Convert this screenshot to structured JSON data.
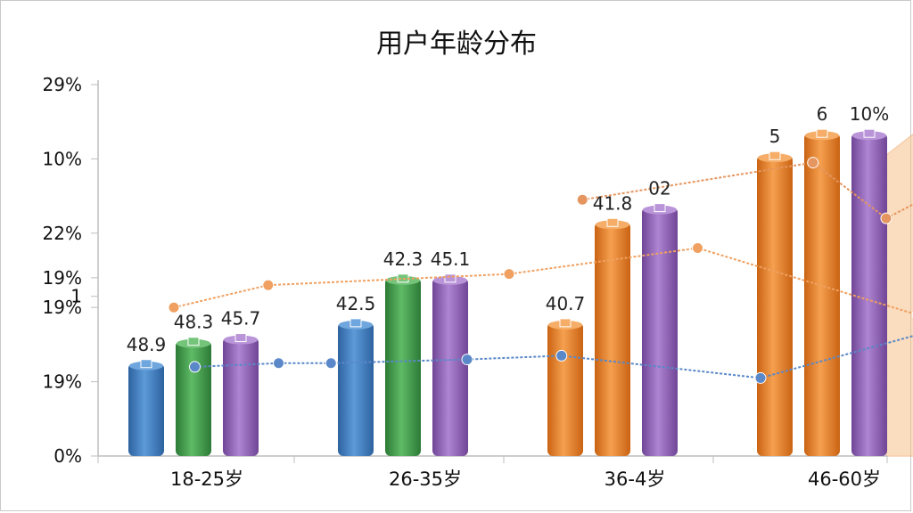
{
  "chart_data": {
    "type": "bar",
    "title": "用户年龄分布",
    "xlabel": "",
    "ylabel": "",
    "y_tick_labels": [
      "0%",
      "19%",
      "19%",
      "1",
      "19%",
      "22%",
      "10%",
      "29%"
    ],
    "categories": [
      "18-25岁",
      "26-35岁",
      "36-4岁",
      "46-60岁"
    ],
    "ylim": [
      0,
      100
    ],
    "grid": false,
    "bars": [
      {
        "category": "18-25岁",
        "color": "#3f7fc1",
        "value": 25,
        "label": "48.9"
      },
      {
        "category": "18-25岁",
        "color": "#3f9a4a",
        "value": 31,
        "label": "48.3"
      },
      {
        "category": "18-25岁",
        "color": "#8f5fb5",
        "value": 32,
        "label": "45.7"
      },
      {
        "category": "26-35岁",
        "color": "#3f7fc1",
        "value": 36,
        "label": "42.5"
      },
      {
        "category": "26-35岁",
        "color": "#3f9a4a",
        "value": 48,
        "label": "42.3"
      },
      {
        "category": "26-35岁",
        "color": "#8f5fb5",
        "value": 48,
        "label": "45.1"
      },
      {
        "category": "36-4岁",
        "color": "#e8822a",
        "value": 36,
        "label": "40.7"
      },
      {
        "category": "36-4岁",
        "color": "#e8822a",
        "value": 63,
        "label": "41.8"
      },
      {
        "category": "36-4岁",
        "color": "#8f5fb5",
        "value": 67,
        "label": "02"
      },
      {
        "category": "46-60岁",
        "color": "#e8822a",
        "value": 81,
        "label": "5"
      },
      {
        "category": "46-60岁",
        "color": "#e8822a",
        "value": 87,
        "label": "6"
      },
      {
        "category": "46-60岁",
        "color": "#8f5fb5",
        "value": 87,
        "label": "10%"
      }
    ],
    "line_series": [
      {
        "color": "#f0a060",
        "marker": "circle",
        "x": [
          -0.2,
          0.25,
          1.4,
          2.3,
          3.35
        ],
        "y": [
          40,
          46,
          49,
          56,
          38
        ]
      },
      {
        "color": "#e5955f",
        "marker": "circle",
        "x": [
          1.75,
          2.85,
          3.2,
          3.85,
          4.2
        ],
        "y": [
          69,
          79,
          64,
          83,
          87
        ]
      },
      {
        "color": "#5a88c8",
        "marker": "circle",
        "x": [
          -0.1,
          0.3,
          0.55,
          1.2,
          1.65,
          2.6,
          3.5,
          3.85,
          4.2,
          5.1
        ],
        "y": [
          24,
          25,
          25,
          26,
          27,
          21,
          35,
          66,
          73,
          70
        ]
      }
    ],
    "area_series": {
      "color": "#f6c089",
      "x": [
        3.2,
        3.45,
        4.1
      ],
      "y_top": [
        81,
        92,
        88
      ]
    }
  }
}
